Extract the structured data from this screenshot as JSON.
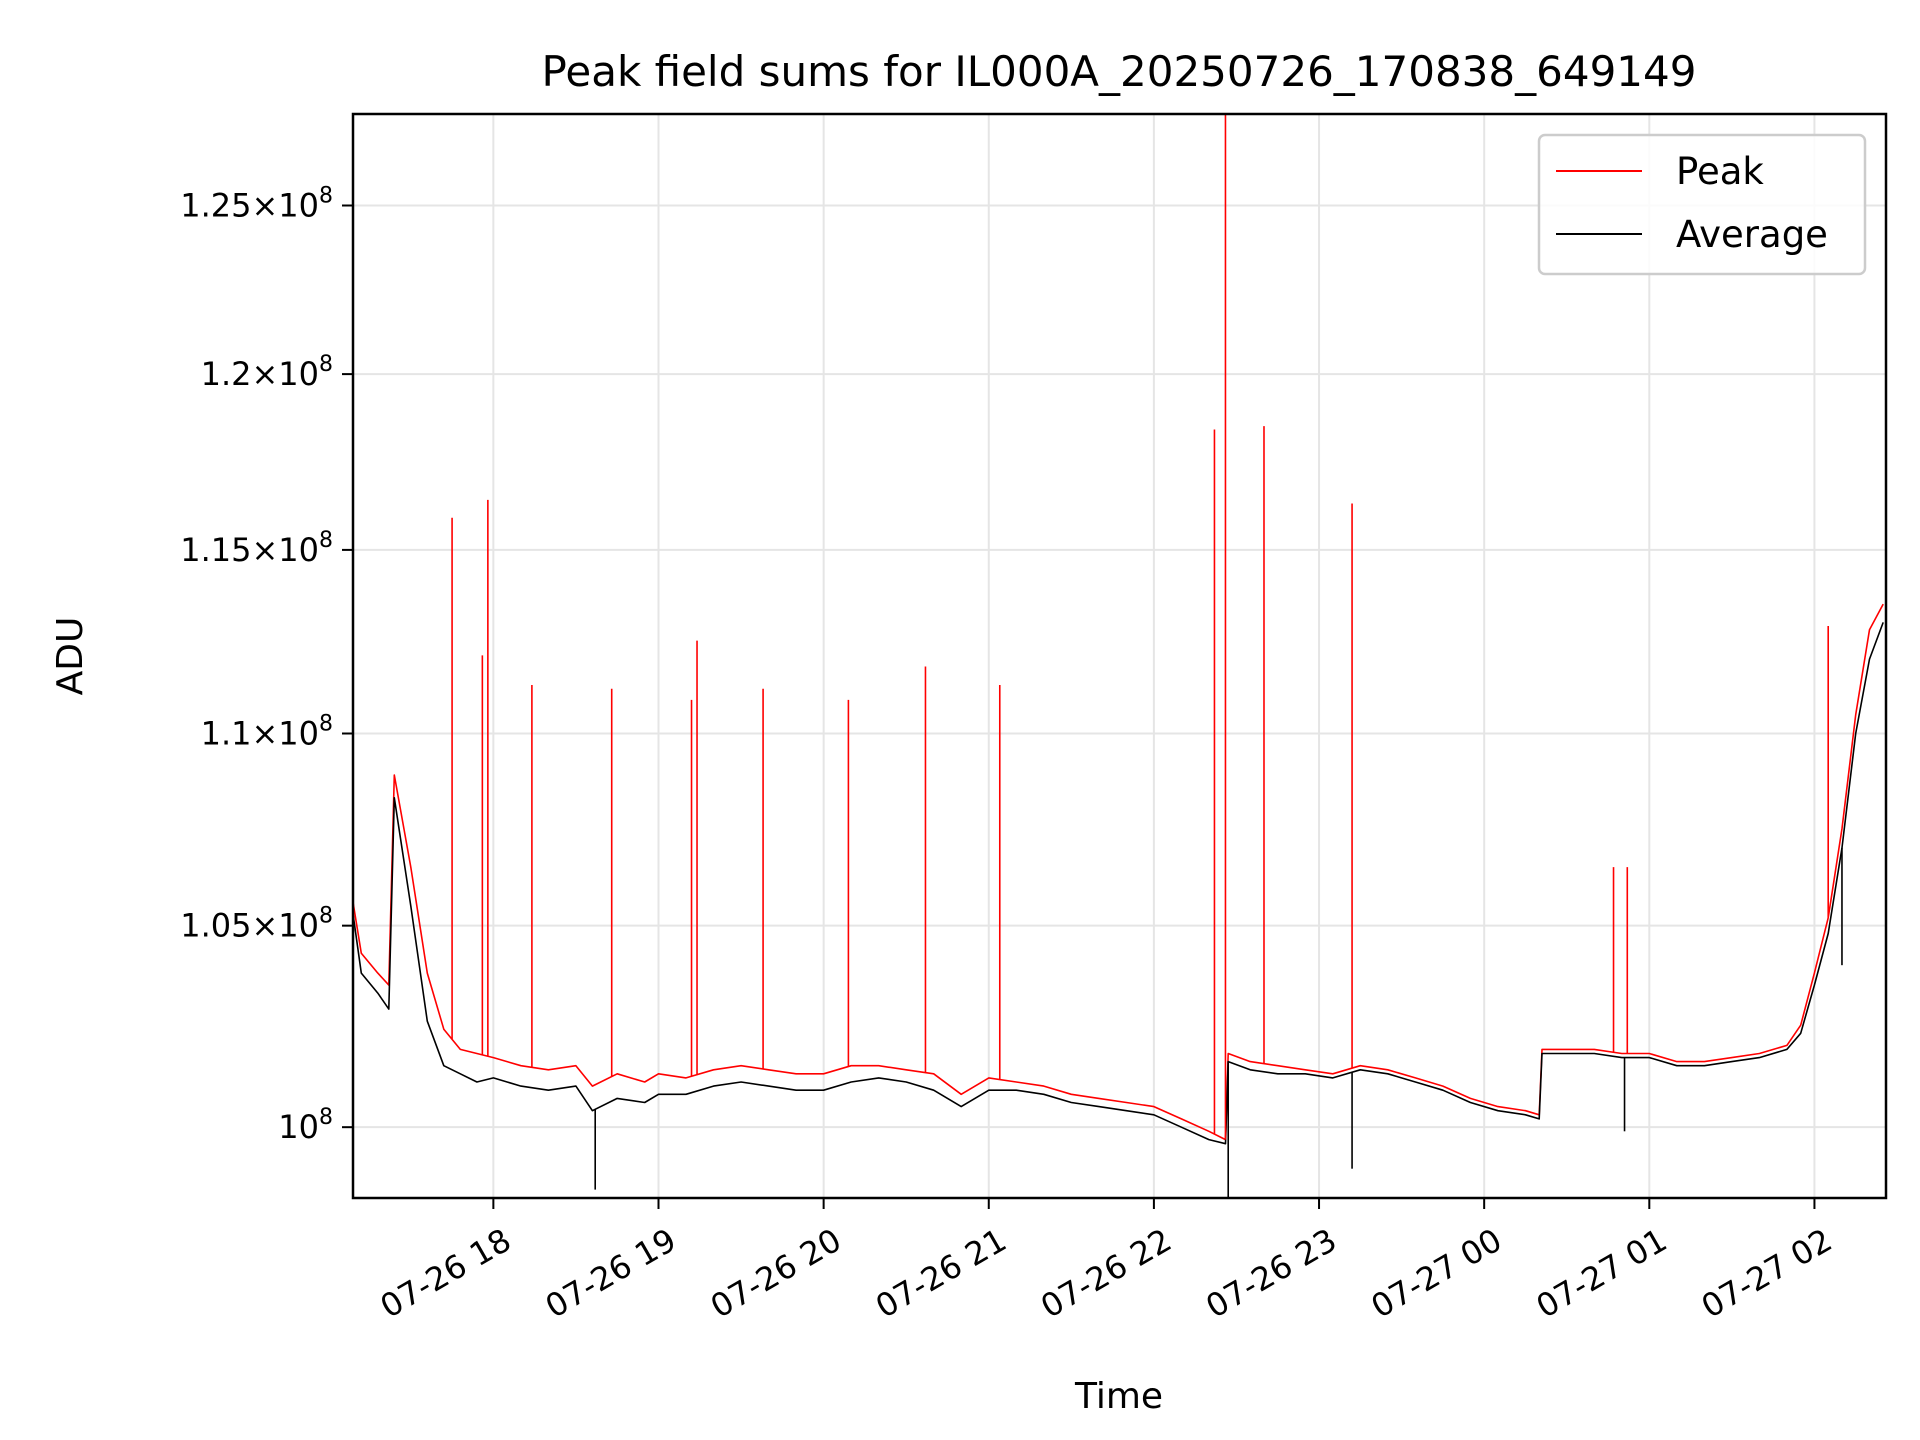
{
  "chart_data": {
    "type": "line",
    "title": "Peak field sums for IL000A_20250726_170838_649149",
    "xlabel": "Time",
    "ylabel": "ADU",
    "yscale": "log",
    "grid": true,
    "legend_placement": "upper-right",
    "xlim": [
      "2025-07-26 17:09",
      "2025-07-27 02:26"
    ],
    "ylim": [
      98300000,
      127800000
    ],
    "x_ticks": [
      {
        "value": "2025-07-26 18:00",
        "label": "07-26 18"
      },
      {
        "value": "2025-07-26 19:00",
        "label": "07-26 19"
      },
      {
        "value": "2025-07-26 20:00",
        "label": "07-26 20"
      },
      {
        "value": "2025-07-26 21:00",
        "label": "07-26 21"
      },
      {
        "value": "2025-07-26 22:00",
        "label": "07-26 22"
      },
      {
        "value": "2025-07-26 23:00",
        "label": "07-26 23"
      },
      {
        "value": "2025-07-27 00:00",
        "label": "07-27 00"
      },
      {
        "value": "2025-07-27 01:00",
        "label": "07-27 01"
      },
      {
        "value": "2025-07-27 02:00",
        "label": "07-27 02"
      }
    ],
    "y_ticks": [
      {
        "value": 100000000,
        "label_mantissa": "",
        "label_base": "10",
        "label_exp": "8"
      },
      {
        "value": 105000000,
        "label_mantissa": "1.05",
        "label_base": "10",
        "label_exp": "8"
      },
      {
        "value": 110000000,
        "label_mantissa": "1.1",
        "label_base": "10",
        "label_exp": "8"
      },
      {
        "value": 115000000,
        "label_mantissa": "1.15",
        "label_base": "10",
        "label_exp": "8"
      },
      {
        "value": 120000000,
        "label_mantissa": "1.2",
        "label_base": "10",
        "label_exp": "8"
      },
      {
        "value": 125000000,
        "label_mantissa": "1.25",
        "label_base": "10",
        "label_exp": "8"
      }
    ],
    "series": [
      {
        "name": "Peak",
        "color": "#ff0000",
        "x": [
          "2025-07-26 17:09",
          "2025-07-26 17:12",
          "2025-07-26 17:18",
          "2025-07-26 17:22",
          "2025-07-26 17:24",
          "2025-07-26 17:30",
          "2025-07-26 17:36",
          "2025-07-26 17:42",
          "2025-07-26 17:48",
          "2025-07-26 17:54",
          "2025-07-26 18:00",
          "2025-07-26 18:10",
          "2025-07-26 18:20",
          "2025-07-26 18:30",
          "2025-07-26 18:36",
          "2025-07-26 18:45",
          "2025-07-26 18:55",
          "2025-07-26 19:00",
          "2025-07-26 19:10",
          "2025-07-26 19:20",
          "2025-07-26 19:30",
          "2025-07-26 19:40",
          "2025-07-26 19:50",
          "2025-07-26 20:00",
          "2025-07-26 20:10",
          "2025-07-26 20:20",
          "2025-07-26 20:30",
          "2025-07-26 20:40",
          "2025-07-26 20:50",
          "2025-07-26 21:00",
          "2025-07-26 21:10",
          "2025-07-26 21:20",
          "2025-07-26 21:30",
          "2025-07-26 21:40",
          "2025-07-26 21:50",
          "2025-07-26 22:00",
          "2025-07-26 22:10",
          "2025-07-26 22:20",
          "2025-07-26 22:26",
          "2025-07-26 22:27",
          "2025-07-26 22:35",
          "2025-07-26 22:45",
          "2025-07-26 22:55",
          "2025-07-26 23:05",
          "2025-07-26 23:15",
          "2025-07-26 23:25",
          "2025-07-26 23:35",
          "2025-07-26 23:45",
          "2025-07-26 23:55",
          "2025-07-27 00:05",
          "2025-07-27 00:15",
          "2025-07-27 00:20",
          "2025-07-27 00:21",
          "2025-07-27 00:30",
          "2025-07-27 00:40",
          "2025-07-27 00:50",
          "2025-07-27 01:00",
          "2025-07-27 01:10",
          "2025-07-27 01:20",
          "2025-07-27 01:30",
          "2025-07-27 01:40",
          "2025-07-27 01:50",
          "2025-07-27 01:55",
          "2025-07-27 02:00",
          "2025-07-27 02:05",
          "2025-07-27 02:10",
          "2025-07-27 02:15",
          "2025-07-27 02:20",
          "2025-07-27 02:25"
        ],
        "y": [
          105600000,
          104300000,
          103800000,
          103500000,
          108900000,
          106500000,
          103800000,
          102400000,
          101900000,
          101800000,
          101700000,
          101500000,
          101400000,
          101500000,
          101000000,
          101300000,
          101100000,
          101300000,
          101200000,
          101400000,
          101500000,
          101400000,
          101300000,
          101300000,
          101500000,
          101500000,
          101400000,
          101300000,
          100800000,
          101200000,
          101100000,
          101000000,
          100800000,
          100700000,
          100600000,
          100500000,
          100200000,
          99900000,
          99700000,
          101800000,
          101600000,
          101500000,
          101400000,
          101300000,
          101500000,
          101400000,
          101200000,
          101000000,
          100700000,
          100500000,
          100400000,
          100300000,
          101900000,
          101900000,
          101900000,
          101800000,
          101800000,
          101600000,
          101600000,
          101700000,
          101800000,
          102000000,
          102500000,
          103800000,
          105200000,
          107500000,
          110500000,
          112800000,
          113500000
        ]
      },
      {
        "name": "Average",
        "color": "#000000",
        "x": [
          "2025-07-26 17:09",
          "2025-07-26 17:12",
          "2025-07-26 17:18",
          "2025-07-26 17:22",
          "2025-07-26 17:24",
          "2025-07-26 17:30",
          "2025-07-26 17:36",
          "2025-07-26 17:42",
          "2025-07-26 17:48",
          "2025-07-26 17:54",
          "2025-07-26 18:00",
          "2025-07-26 18:10",
          "2025-07-26 18:20",
          "2025-07-26 18:30",
          "2025-07-26 18:36",
          "2025-07-26 18:45",
          "2025-07-26 18:55",
          "2025-07-26 19:00",
          "2025-07-26 19:10",
          "2025-07-26 19:20",
          "2025-07-26 19:30",
          "2025-07-26 19:40",
          "2025-07-26 19:50",
          "2025-07-26 20:00",
          "2025-07-26 20:10",
          "2025-07-26 20:20",
          "2025-07-26 20:30",
          "2025-07-26 20:40",
          "2025-07-26 20:50",
          "2025-07-26 21:00",
          "2025-07-26 21:10",
          "2025-07-26 21:20",
          "2025-07-26 21:30",
          "2025-07-26 21:40",
          "2025-07-26 21:50",
          "2025-07-26 22:00",
          "2025-07-26 22:10",
          "2025-07-26 22:20",
          "2025-07-26 22:26",
          "2025-07-26 22:27",
          "2025-07-26 22:35",
          "2025-07-26 22:45",
          "2025-07-26 22:55",
          "2025-07-26 23:05",
          "2025-07-26 23:15",
          "2025-07-26 23:25",
          "2025-07-26 23:35",
          "2025-07-26 23:45",
          "2025-07-26 23:55",
          "2025-07-27 00:05",
          "2025-07-27 00:15",
          "2025-07-27 00:20",
          "2025-07-27 00:21",
          "2025-07-27 00:30",
          "2025-07-27 00:40",
          "2025-07-27 00:50",
          "2025-07-27 01:00",
          "2025-07-27 01:10",
          "2025-07-27 01:20",
          "2025-07-27 01:30",
          "2025-07-27 01:40",
          "2025-07-27 01:50",
          "2025-07-27 01:55",
          "2025-07-27 02:00",
          "2025-07-27 02:05",
          "2025-07-27 02:10",
          "2025-07-27 02:15",
          "2025-07-27 02:20",
          "2025-07-27 02:25"
        ],
        "y": [
          105300000,
          103800000,
          103300000,
          102900000,
          108300000,
          105500000,
          102600000,
          101500000,
          101300000,
          101100000,
          101200000,
          101000000,
          100900000,
          101000000,
          100400000,
          100700000,
          100600000,
          100800000,
          100800000,
          101000000,
          101100000,
          101000000,
          100900000,
          100900000,
          101100000,
          101200000,
          101100000,
          100900000,
          100500000,
          100900000,
          100900000,
          100800000,
          100600000,
          100500000,
          100400000,
          100300000,
          100000000,
          99700000,
          99600000,
          101600000,
          101400000,
          101300000,
          101300000,
          101200000,
          101400000,
          101300000,
          101100000,
          100900000,
          100600000,
          100400000,
          100300000,
          100200000,
          101800000,
          101800000,
          101800000,
          101700000,
          101700000,
          101500000,
          101500000,
          101600000,
          101700000,
          101900000,
          102300000,
          103500000,
          104800000,
          107000000,
          110000000,
          112000000,
          113000000
        ]
      }
    ],
    "spikes": [
      {
        "series": "Peak",
        "x": "2025-07-26 17:45",
        "y": 115900000
      },
      {
        "series": "Peak",
        "x": "2025-07-26 17:58",
        "y": 116400000
      },
      {
        "series": "Peak",
        "x": "2025-07-26 17:56",
        "y": 112100000
      },
      {
        "series": "Peak",
        "x": "2025-07-26 18:14",
        "y": 111300000
      },
      {
        "series": "Peak",
        "x": "2025-07-26 18:43",
        "y": 111200000
      },
      {
        "series": "Peak",
        "x": "2025-07-26 19:14",
        "y": 112500000
      },
      {
        "series": "Peak",
        "x": "2025-07-26 19:12",
        "y": 110900000
      },
      {
        "series": "Peak",
        "x": "2025-07-26 19:38",
        "y": 111200000
      },
      {
        "series": "Peak",
        "x": "2025-07-26 20:09",
        "y": 110900000
      },
      {
        "series": "Peak",
        "x": "2025-07-26 20:37",
        "y": 111800000
      },
      {
        "series": "Peak",
        "x": "2025-07-26 21:04",
        "y": 111300000
      },
      {
        "series": "Peak",
        "x": "2025-07-26 22:22",
        "y": 118400000
      },
      {
        "series": "Peak",
        "x": "2025-07-26 22:26",
        "y": 127800000
      },
      {
        "series": "Peak",
        "x": "2025-07-26 22:40",
        "y": 118500000
      },
      {
        "series": "Peak",
        "x": "2025-07-26 23:12",
        "y": 116300000
      },
      {
        "series": "Peak",
        "x": "2025-07-27 00:47",
        "y": 106500000
      },
      {
        "series": "Peak",
        "x": "2025-07-27 00:52",
        "y": 106500000
      },
      {
        "series": "Peak",
        "x": "2025-07-27 02:05",
        "y": 112900000
      },
      {
        "series": "Average",
        "x": "2025-07-26 18:37",
        "y": 98500000
      },
      {
        "series": "Average",
        "x": "2025-07-26 22:27",
        "y": 98300000
      },
      {
        "series": "Average",
        "x": "2025-07-26 23:12",
        "y": 99000000
      },
      {
        "series": "Average",
        "x": "2025-07-27 00:51",
        "y": 99900000
      },
      {
        "series": "Average",
        "x": "2025-07-27 02:10",
        "y": 104000000
      }
    ]
  }
}
